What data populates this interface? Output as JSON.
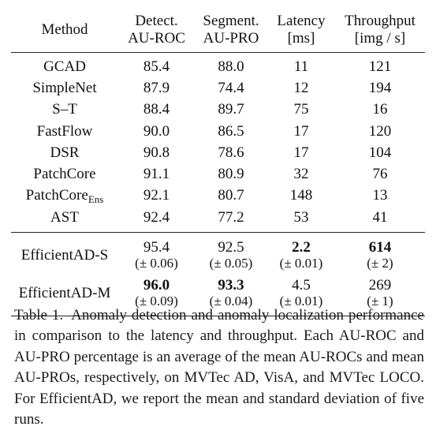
{
  "table": {
    "columns": [
      {
        "line1": "Method",
        "line2": ""
      },
      {
        "line1": "Detect.",
        "line2": "AU-ROC"
      },
      {
        "line1": "Segment.",
        "line2": "AU-PRO"
      },
      {
        "line1": "Latency",
        "line2": "[ms]"
      },
      {
        "line1": "Throughput",
        "line2": "[img / s]"
      }
    ],
    "baselines": [
      {
        "method": "GCAD",
        "sub": "",
        "detect": "85.4",
        "segment": "88.0",
        "latency": "11",
        "throughput": "121"
      },
      {
        "method": "SimpleNet",
        "sub": "",
        "detect": "87.9",
        "segment": "74.4",
        "latency": "12",
        "throughput": "194"
      },
      {
        "method": "S–T",
        "sub": "",
        "detect": "88.4",
        "segment": "89.7",
        "latency": "75",
        "throughput": "16"
      },
      {
        "method": "FastFlow",
        "sub": "",
        "detect": "90.0",
        "segment": "86.5",
        "latency": "17",
        "throughput": "120"
      },
      {
        "method": "DSR",
        "sub": "",
        "detect": "90.8",
        "segment": "78.6",
        "latency": "17",
        "throughput": "104"
      },
      {
        "method": "PatchCore",
        "sub": "",
        "detect": "91.1",
        "segment": "80.9",
        "latency": "32",
        "throughput": "76"
      },
      {
        "method": "PatchCore",
        "sub": "Ens",
        "detect": "92.1",
        "segment": "80.7",
        "latency": "148",
        "throughput": "13"
      },
      {
        "method": "AST",
        "sub": "",
        "detect": "92.4",
        "segment": "77.2",
        "latency": "53",
        "throughput": "41"
      }
    ],
    "ours": [
      {
        "method": "EfficientAD-S",
        "detect": "95.4",
        "detect_sd": "(± 0.06)",
        "segment": "92.5",
        "segment_sd": "(± 0.05)",
        "latency": "2.2",
        "latency_sd": "(± 0.01)",
        "throughput": "614",
        "throughput_sd": "(± 2)"
      },
      {
        "method": "EfficientAD-M",
        "detect": "96.0",
        "detect_sd": "(± 0.09)",
        "segment": "93.3",
        "segment_sd": "(± 0.04)",
        "latency": "4.5",
        "latency_sd": "(± 0.01)",
        "throughput": "269",
        "throughput_sd": "(± 1)"
      }
    ]
  },
  "caption": {
    "label": "Table 1.",
    "text": "Anomaly detection and anomaly localization performance in comparison to the latency and throughput. Each AU-ROC and AU-PRO percentage is an average of the mean AU-ROCs and mean AU-PROs, respectively, on MVTec AD, VisA, and MVTec LOCO. For EfficientAD, we report the mean and standard deviation of five runs."
  }
}
